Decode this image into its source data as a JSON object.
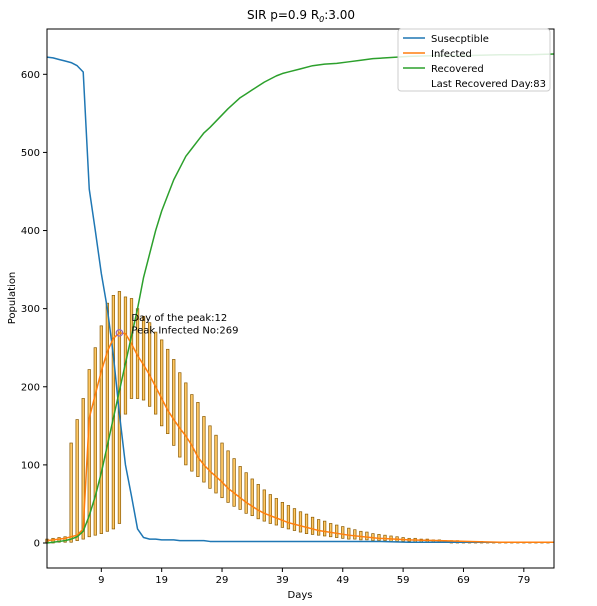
{
  "chart_data": {
    "type": "line",
    "title": "SIR p=0.9 R",
    "title_sub": "0",
    "title_suffix": ":3.00",
    "xlabel": "Days",
    "ylabel": "Population",
    "xlim": [
      0,
      84
    ],
    "ylim": [
      -32,
      658
    ],
    "xticks": [
      9,
      19,
      29,
      39,
      49,
      59,
      69,
      79
    ],
    "yticks": [
      0,
      100,
      200,
      300,
      400,
      500,
      600
    ],
    "grid": false,
    "legend_position": "top-right",
    "colors": {
      "susceptible": "#1f77b4",
      "infected": "#ff7f0e",
      "recovered": "#2ca02c",
      "bar_face": "#ffc864",
      "bar_edge": "#8b5a00",
      "peak_marker": "#9467bd"
    },
    "series": [
      {
        "name": "Susecptible",
        "x": [
          0,
          1,
          2,
          3,
          4,
          5,
          6,
          7,
          8,
          9,
          10,
          11,
          12,
          13,
          14,
          15,
          16,
          17,
          18,
          19,
          20,
          21,
          22,
          23,
          24,
          25,
          26,
          27,
          28,
          29,
          30,
          35,
          40,
          45,
          50,
          55,
          60,
          65,
          70,
          75,
          80,
          84
        ],
        "y": [
          622,
          621,
          619,
          617,
          615,
          611,
          603,
          453,
          400,
          345,
          300,
          240,
          165,
          100,
          60,
          18,
          7,
          5,
          5,
          4,
          4,
          4,
          3,
          3,
          3,
          3,
          3,
          2,
          2,
          2,
          2,
          2,
          2,
          2,
          2,
          2,
          1,
          1,
          1,
          1,
          1,
          1
        ]
      },
      {
        "name": "Infected",
        "x": [
          0,
          1,
          2,
          3,
          4,
          5,
          6,
          7,
          8,
          9,
          10,
          11,
          12,
          13,
          14,
          15,
          16,
          17,
          18,
          19,
          20,
          21,
          22,
          23,
          24,
          25,
          26,
          27,
          28,
          29,
          30,
          31,
          32,
          33,
          34,
          35,
          36,
          37,
          38,
          39,
          40,
          41,
          42,
          43,
          44,
          45,
          50,
          55,
          60,
          65,
          70,
          75,
          80,
          84
        ],
        "y": [
          3,
          4,
          5,
          6,
          8,
          10,
          18,
          160,
          190,
          220,
          245,
          262,
          269,
          268,
          255,
          240,
          228,
          215,
          200,
          185,
          170,
          158,
          147,
          137,
          125,
          110,
          100,
          92,
          85,
          78,
          70,
          64,
          58,
          52,
          47,
          42,
          38,
          35,
          32,
          29,
          26,
          24,
          22,
          20,
          18,
          16,
          10,
          6,
          4,
          3,
          2,
          1,
          1,
          1
        ]
      },
      {
        "name": "Recovered",
        "x": [
          0,
          1,
          2,
          3,
          4,
          5,
          6,
          7,
          8,
          9,
          10,
          11,
          12,
          13,
          14,
          15,
          16,
          17,
          18,
          19,
          20,
          21,
          22,
          23,
          24,
          25,
          26,
          27,
          28,
          29,
          30,
          31,
          32,
          33,
          34,
          35,
          36,
          37,
          38,
          39,
          40,
          42,
          44,
          46,
          48,
          50,
          52,
          54,
          56,
          58,
          60,
          65,
          70,
          75,
          80,
          84
        ],
        "y": [
          0,
          1,
          2,
          3,
          5,
          8,
          15,
          35,
          60,
          90,
          125,
          160,
          195,
          230,
          265,
          300,
          340,
          370,
          400,
          425,
          445,
          465,
          480,
          495,
          505,
          515,
          525,
          532,
          540,
          548,
          556,
          563,
          570,
          575,
          580,
          585,
          590,
          594,
          598,
          601,
          603,
          607,
          611,
          613,
          614,
          616,
          618,
          620,
          621,
          622,
          623,
          624,
          624,
          625,
          625,
          626
        ]
      }
    ],
    "error_bars": {
      "x": [
        0,
        1,
        2,
        3,
        4,
        5,
        6,
        7,
        8,
        9,
        10,
        11,
        12,
        13,
        14,
        15,
        16,
        17,
        18,
        19,
        20,
        21,
        22,
        23,
        24,
        25,
        26,
        27,
        28,
        29,
        30,
        31,
        32,
        33,
        34,
        35,
        36,
        37,
        38,
        39,
        40,
        41,
        42,
        43,
        44,
        45,
        46,
        47,
        48,
        49,
        50,
        51,
        52,
        53,
        54,
        55,
        56,
        57,
        58,
        59,
        60,
        61,
        62,
        63,
        64,
        65,
        66,
        67,
        68,
        69,
        70,
        71,
        72,
        73,
        74,
        75,
        76,
        77,
        78,
        79,
        80,
        81,
        82,
        83
      ],
      "low": [
        0,
        0,
        1,
        1,
        1,
        3,
        5,
        8,
        10,
        12,
        15,
        18,
        25,
        165,
        185,
        185,
        183,
        175,
        165,
        150,
        140,
        125,
        110,
        100,
        92,
        85,
        78,
        70,
        64,
        58,
        52,
        47,
        43,
        38,
        35,
        31,
        28,
        25,
        23,
        20,
        18,
        16,
        14,
        12,
        11,
        10,
        9,
        8,
        7,
        6,
        5,
        5,
        4,
        4,
        3,
        3,
        3,
        2,
        2,
        2,
        2,
        1,
        1,
        1,
        1,
        1,
        1,
        0,
        0,
        0,
        0,
        0,
        0,
        0,
        0,
        0,
        0,
        0,
        0,
        0,
        0,
        0,
        0,
        0
      ],
      "high": [
        5,
        6,
        7,
        8,
        128,
        158,
        185,
        222,
        250,
        278,
        307,
        317,
        322,
        315,
        313,
        300,
        290,
        282,
        270,
        260,
        248,
        235,
        218,
        205,
        190,
        180,
        162,
        150,
        138,
        128,
        118,
        108,
        98,
        90,
        82,
        75,
        68,
        62,
        57,
        52,
        48,
        44,
        40,
        37,
        33,
        30,
        28,
        25,
        23,
        21,
        19,
        17,
        15,
        14,
        12,
        11,
        10,
        9,
        8,
        7,
        6,
        6,
        5,
        5,
        4,
        4,
        3,
        3,
        3,
        2,
        2,
        2,
        2,
        1,
        1,
        1,
        1,
        1,
        1,
        1,
        1,
        1,
        1,
        1
      ]
    },
    "annotations": {
      "peak_x": 12,
      "peak_y": 269,
      "line1": "Day of the peak:12",
      "line2": "Peak Infected No:269"
    },
    "legend_entries": [
      {
        "label": "Susecptible",
        "key": "susceptible"
      },
      {
        "label": "Infected",
        "key": "infected"
      },
      {
        "label": "Recovered",
        "key": "recovered"
      },
      {
        "label": "Last Recovered Day:83",
        "key": "none"
      }
    ]
  }
}
